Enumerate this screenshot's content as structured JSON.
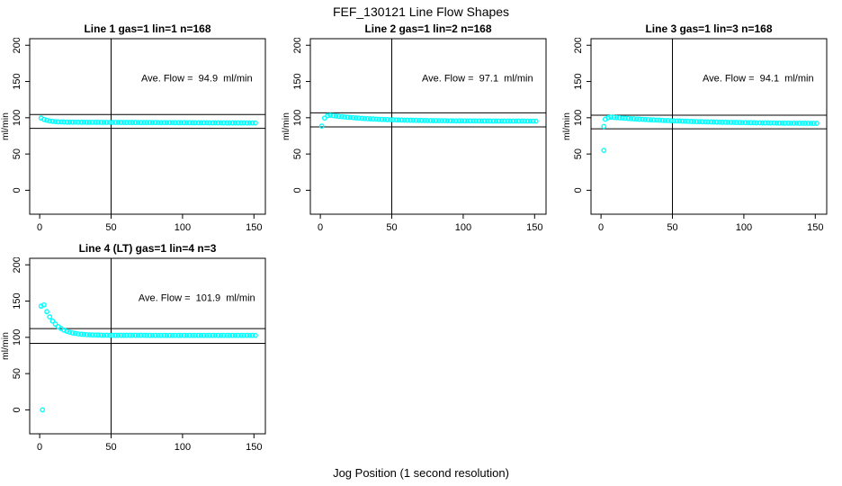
{
  "page": {
    "title": "FEF_130121  Line Flow Shapes",
    "xlabel": "Jog Position (1 second resolution)",
    "background": "#ffffff",
    "point_color": "#00ffff",
    "axis_color": "#000000"
  },
  "chart_data": [
    {
      "type": "scatter",
      "title": "Line 1 gas=1 lin=1 n=168",
      "annotation": "Ave. Flow =  94.9  ml/min",
      "avg_flow_ml_min": 94.9,
      "n": 168,
      "ylabel": "ml/min",
      "x_ticks": [
        0,
        50,
        100,
        150
      ],
      "y_ticks": [
        0,
        50,
        100,
        150,
        200
      ],
      "x_visible_range": [
        -7,
        158
      ],
      "y_visible_range": [
        -33,
        209
      ],
      "vline_x": 50,
      "hlines_y": [
        104.4,
        85.4
      ],
      "annotation_xy": [
        110,
        150
      ],
      "series": {
        "x_start": 1,
        "x_step": 2,
        "y": [
          99.6,
          97.7,
          96.5,
          95.6,
          95.1,
          94.7,
          94.4,
          94.2,
          94.1,
          94.0,
          94.0,
          93.9,
          93.9,
          93.8,
          93.8,
          93.8,
          93.7,
          93.7,
          93.7,
          93.7,
          93.7,
          93.7,
          93.6,
          93.6,
          93.6,
          93.6,
          93.6,
          93.6,
          93.5,
          93.5,
          93.5,
          93.5,
          93.5,
          93.5,
          93.4,
          93.4,
          93.4,
          93.4,
          93.4,
          93.4,
          93.4,
          93.3,
          93.3,
          93.3,
          93.3,
          93.3,
          93.3,
          93.2,
          93.2,
          93.2,
          93.2,
          93.2,
          93.2,
          93.1,
          93.1,
          93.1,
          93.1,
          93.1,
          93.1,
          93.0,
          93.0,
          93.0,
          93.0,
          93.0,
          93.0,
          92.9,
          92.9,
          92.9,
          92.9,
          92.9,
          92.9,
          92.9,
          92.8,
          92.8,
          92.8,
          92.8
        ]
      },
      "extra_points": []
    },
    {
      "type": "scatter",
      "title": "Line 2 gas=1 lin=2 n=168",
      "annotation": "Ave. Flow =  97.1  ml/min",
      "avg_flow_ml_min": 97.1,
      "n": 168,
      "ylabel": "ml/min",
      "x_ticks": [
        0,
        50,
        100,
        150
      ],
      "y_ticks": [
        0,
        50,
        100,
        150,
        200
      ],
      "x_visible_range": [
        -7,
        158
      ],
      "y_visible_range": [
        -33,
        209
      ],
      "vline_x": 50,
      "hlines_y": [
        106.8,
        87.4
      ],
      "annotation_xy": [
        110,
        150
      ],
      "series": {
        "x_start": 1,
        "x_step": 2,
        "y": [
          88.5,
          99.5,
          102.8,
          103.4,
          102.9,
          102.4,
          101.9,
          101.5,
          101.1,
          100.7,
          100.4,
          100.1,
          99.7,
          99.5,
          99.2,
          98.9,
          98.7,
          98.5,
          98.3,
          98.1,
          97.9,
          97.7,
          97.6,
          97.4,
          97.3,
          97.2,
          97.0,
          96.9,
          96.8,
          96.7,
          96.6,
          96.6,
          96.5,
          96.4,
          96.3,
          96.3,
          96.2,
          96.1,
          96.1,
          96.0,
          96.0,
          95.9,
          95.9,
          95.9,
          95.8,
          95.8,
          95.8,
          95.7,
          95.7,
          95.7,
          95.7,
          95.6,
          95.6,
          95.6,
          95.6,
          95.6,
          95.5,
          95.5,
          95.5,
          95.5,
          95.4,
          95.4,
          95.4,
          95.4,
          95.4,
          95.4,
          95.4,
          95.4,
          95.4,
          95.4,
          95.4,
          95.4,
          95.3,
          95.3,
          95.3,
          95.3
        ]
      },
      "extra_points": []
    },
    {
      "type": "scatter",
      "title": "Line 3 gas=1 lin=3 n=168",
      "annotation": "Ave. Flow =  94.1  ml/min",
      "avg_flow_ml_min": 94.1,
      "n": 168,
      "ylabel": "ml/min",
      "x_ticks": [
        0,
        50,
        100,
        150
      ],
      "y_ticks": [
        0,
        50,
        100,
        150,
        200
      ],
      "x_visible_range": [
        -7,
        158
      ],
      "y_visible_range": [
        -33,
        209
      ],
      "vline_x": 50,
      "hlines_y": [
        103.5,
        84.7
      ],
      "annotation_xy": [
        110,
        150
      ],
      "series": {
        "x_start": 3,
        "x_step": 2,
        "y": [
          98.0,
          100.0,
          100.8,
          100.5,
          100.2,
          99.9,
          99.6,
          99.3,
          99.0,
          98.7,
          98.5,
          98.2,
          98.0,
          97.8,
          97.6,
          97.3,
          97.1,
          96.9,
          96.8,
          96.6,
          96.4,
          96.2,
          96.1,
          95.9,
          95.7,
          95.6,
          95.5,
          95.3,
          95.2,
          95.1,
          94.9,
          94.8,
          94.7,
          94.6,
          94.5,
          94.4,
          94.3,
          94.2,
          94.1,
          94.0,
          93.9,
          93.8,
          93.8,
          93.7,
          93.6,
          93.5,
          93.5,
          93.4,
          93.3,
          93.3,
          93.2,
          93.2,
          93.1,
          93.0,
          93.0,
          92.9,
          92.9,
          92.9,
          92.8,
          92.8,
          92.7,
          92.7,
          92.6,
          92.6,
          92.6,
          92.5,
          92.5,
          92.5,
          92.4,
          92.4,
          92.4,
          92.4,
          92.3,
          92.3,
          92.3
        ]
      },
      "extra_points": [
        [
          2,
          55
        ],
        [
          2,
          88
        ]
      ]
    },
    {
      "type": "scatter",
      "title": "Line 4 (LT) gas=1 lin=4 n=3",
      "annotation": "Ave. Flow =  101.9  ml/min",
      "avg_flow_ml_min": 101.9,
      "n": 3,
      "ylabel": "ml/min",
      "x_ticks": [
        0,
        50,
        100,
        150
      ],
      "y_ticks": [
        0,
        50,
        100,
        150,
        200
      ],
      "x_visible_range": [
        -7,
        158
      ],
      "y_visible_range": [
        -33,
        209
      ],
      "vline_x": 50,
      "hlines_y": [
        112.1,
        91.7
      ],
      "annotation_xy": [
        110,
        150
      ],
      "series": {
        "x_start": 1,
        "x_step": 2,
        "y": [
          143.0,
          144.7,
          135.4,
          128.2,
          122.5,
          118.2,
          114.7,
          112.1,
          110.0,
          108.4,
          107.1,
          106.1,
          105.4,
          104.8,
          104.3,
          104.0,
          103.7,
          103.5,
          103.3,
          103.2,
          103.1,
          103.0,
          102.9,
          102.9,
          102.8,
          102.8,
          102.8,
          102.8,
          102.8,
          102.8,
          102.8,
          102.8,
          102.8,
          102.8,
          102.8,
          102.8,
          102.8,
          102.8,
          102.7,
          102.7,
          102.7,
          102.7,
          102.7,
          102.7,
          102.7,
          102.7,
          102.7,
          102.7,
          102.7,
          102.7,
          102.7,
          102.7,
          102.7,
          102.7,
          102.7,
          102.7,
          102.7,
          102.7,
          102.7,
          102.7,
          102.7,
          102.7,
          102.7,
          102.7,
          102.7,
          102.7,
          102.7,
          102.7,
          102.7,
          102.7,
          102.7,
          102.7,
          102.7,
          102.7,
          102.7,
          102.7
        ]
      },
      "extra_points": [
        [
          2,
          0
        ]
      ]
    }
  ]
}
